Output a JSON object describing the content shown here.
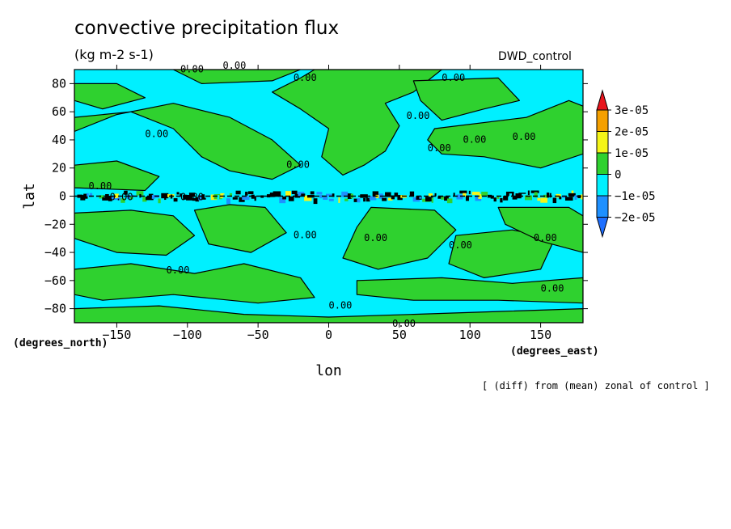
{
  "chart_data": {
    "type": "heatmap",
    "title": "convective precipitation flux",
    "units": "(kg m-2 s-1)",
    "run_label": "DWD_control",
    "footnote": "[ (diff) from (mean) zonal of control ]",
    "xlabel": "lon",
    "ylabel": "lat",
    "x_unit_label": "(degrees_east)",
    "y_unit_label": "(degrees_north)",
    "xlim": [
      -180,
      180
    ],
    "ylim": [
      -90,
      90
    ],
    "x_ticks": [
      -150,
      -100,
      -50,
      0,
      50,
      100,
      150
    ],
    "y_ticks": [
      -80,
      -60,
      -40,
      -20,
      0,
      20,
      40,
      60,
      80
    ],
    "contour_label": "0.00",
    "colorbar": {
      "levels": [
        "3e-05",
        "2e-05",
        "1e-05",
        "0",
        "−1e-05",
        "−2e-05"
      ],
      "colors": [
        "#e8141c",
        "#f5a000",
        "#f5f518",
        "#2fd12f",
        "#00f0ff",
        "#1e90ff",
        "#1e6fff"
      ]
    },
    "regions": [
      {
        "level": "0 to 1e-05",
        "color": "#2fd12f",
        "polygon": [
          [
            -180,
            80
          ],
          [
            -150,
            80
          ],
          [
            -130,
            70
          ],
          [
            -160,
            62
          ],
          [
            -180,
            68
          ]
        ]
      },
      {
        "level": "0 to 1e-05",
        "color": "#2fd12f",
        "polygon": [
          [
            -110,
            90
          ],
          [
            -20,
            90
          ],
          [
            -40,
            82
          ],
          [
            -90,
            80
          ]
        ]
      },
      {
        "level": "0 to 1e-05",
        "color": "#2fd12f",
        "polygon": [
          [
            -180,
            56
          ],
          [
            -140,
            60
          ],
          [
            -110,
            48
          ],
          [
            -90,
            28
          ],
          [
            -70,
            18
          ],
          [
            -40,
            12
          ],
          [
            -20,
            22
          ],
          [
            -40,
            40
          ],
          [
            -70,
            56
          ],
          [
            -110,
            66
          ],
          [
            -150,
            58
          ],
          [
            -180,
            46
          ]
        ]
      },
      {
        "level": "0 to 1e-05",
        "color": "#2fd12f",
        "polygon": [
          [
            -180,
            22
          ],
          [
            -150,
            25
          ],
          [
            -120,
            14
          ],
          [
            -130,
            4
          ],
          [
            -180,
            6
          ]
        ]
      },
      {
        "level": "0 to 1e-05",
        "color": "#2fd12f",
        "polygon": [
          [
            -10,
            90
          ],
          [
            80,
            90
          ],
          [
            60,
            74
          ],
          [
            40,
            66
          ],
          [
            50,
            50
          ],
          [
            40,
            32
          ],
          [
            25,
            22
          ],
          [
            10,
            15
          ],
          [
            -5,
            28
          ],
          [
            0,
            48
          ],
          [
            -20,
            62
          ],
          [
            -40,
            74
          ],
          [
            -20,
            84
          ]
        ]
      },
      {
        "level": "0 to 1e-05",
        "color": "#2fd12f",
        "polygon": [
          [
            60,
            82
          ],
          [
            120,
            84
          ],
          [
            135,
            68
          ],
          [
            110,
            62
          ],
          [
            80,
            54
          ],
          [
            65,
            68
          ]
        ]
      },
      {
        "level": "0 to 1e-05",
        "color": "#2fd12f",
        "polygon": [
          [
            75,
            48
          ],
          [
            140,
            56
          ],
          [
            170,
            68
          ],
          [
            180,
            64
          ],
          [
            180,
            30
          ],
          [
            150,
            20
          ],
          [
            110,
            28
          ],
          [
            80,
            30
          ],
          [
            70,
            40
          ]
        ]
      },
      {
        "level": "0 to 1e-05",
        "color": "#2fd12f",
        "polygon": [
          [
            -180,
            -12
          ],
          [
            -140,
            -10
          ],
          [
            -110,
            -14
          ],
          [
            -95,
            -28
          ],
          [
            -115,
            -42
          ],
          [
            -150,
            -40
          ],
          [
            -180,
            -30
          ]
        ]
      },
      {
        "level": "0 to 1e-05",
        "color": "#2fd12f",
        "polygon": [
          [
            -95,
            -10
          ],
          [
            -70,
            -6
          ],
          [
            -45,
            -8
          ],
          [
            -30,
            -26
          ],
          [
            -55,
            -40
          ],
          [
            -85,
            -34
          ]
        ]
      },
      {
        "level": "0 to 1e-05",
        "color": "#2fd12f",
        "polygon": [
          [
            -180,
            -52
          ],
          [
            -140,
            -48
          ],
          [
            -95,
            -55
          ],
          [
            -60,
            -48
          ],
          [
            -20,
            -58
          ],
          [
            -10,
            -72
          ],
          [
            -50,
            -76
          ],
          [
            -110,
            -70
          ],
          [
            -160,
            -74
          ],
          [
            -180,
            -70
          ]
        ]
      },
      {
        "level": "0 to 1e-05",
        "color": "#2fd12f",
        "polygon": [
          [
            -180,
            -80
          ],
          [
            -120,
            -78
          ],
          [
            -60,
            -84
          ],
          [
            0,
            -86
          ],
          [
            60,
            -84
          ],
          [
            120,
            -82
          ],
          [
            180,
            -80
          ],
          [
            180,
            -90
          ],
          [
            -180,
            -90
          ]
        ]
      },
      {
        "level": "0 to 1e-05",
        "color": "#2fd12f",
        "polygon": [
          [
            30,
            -8
          ],
          [
            75,
            -10
          ],
          [
            90,
            -24
          ],
          [
            70,
            -44
          ],
          [
            35,
            -52
          ],
          [
            10,
            -44
          ],
          [
            20,
            -22
          ]
        ]
      },
      {
        "level": "0 to 1e-05",
        "color": "#2fd12f",
        "polygon": [
          [
            90,
            -28
          ],
          [
            130,
            -24
          ],
          [
            160,
            -30
          ],
          [
            150,
            -52
          ],
          [
            110,
            -58
          ],
          [
            85,
            -48
          ]
        ]
      },
      {
        "level": "0 to 1e-05",
        "color": "#2fd12f",
        "polygon": [
          [
            120,
            -8
          ],
          [
            170,
            -8
          ],
          [
            180,
            -14
          ],
          [
            180,
            -40
          ],
          [
            150,
            -32
          ],
          [
            125,
            -20
          ]
        ]
      },
      {
        "level": "0 to 1e-05",
        "color": "#2fd12f",
        "polygon": [
          [
            20,
            -60
          ],
          [
            80,
            -58
          ],
          [
            130,
            -62
          ],
          [
            180,
            -58
          ],
          [
            180,
            -76
          ],
          [
            120,
            -74
          ],
          [
            60,
            -74
          ],
          [
            20,
            -70
          ]
        ]
      }
    ]
  }
}
